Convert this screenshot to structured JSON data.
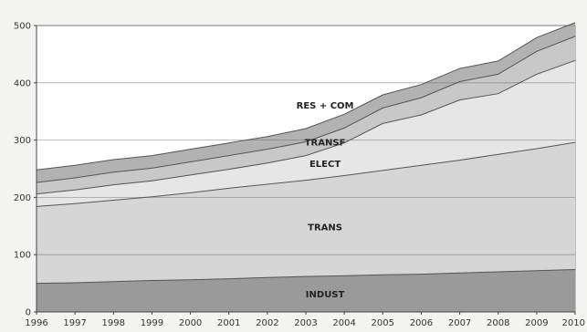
{
  "chart_data": {
    "type": "area",
    "stacked": true,
    "title": "",
    "xlabel": "",
    "ylabel": "",
    "x": [
      "1996",
      "1997",
      "1998",
      "1999",
      "2000",
      "2001",
      "2002",
      "2003",
      "2004",
      "2005",
      "2006",
      "2007",
      "2008",
      "2009",
      "2010"
    ],
    "ylim": [
      0,
      500
    ],
    "yticks": [
      0,
      100,
      200,
      300,
      400,
      500
    ],
    "grid": true,
    "legend": "inline labels",
    "series": [
      {
        "name": "INDUST",
        "color": "#9a9a9a",
        "values": [
          50,
          51,
          53,
          55,
          56,
          58,
          60,
          62,
          63,
          65,
          66,
          68,
          70,
          72,
          74
        ]
      },
      {
        "name": "TRANS",
        "color": "#d6d6d6",
        "values": [
          134,
          138,
          142,
          146,
          152,
          158,
          163,
          168,
          175,
          182,
          190,
          197,
          205,
          213,
          222
        ]
      },
      {
        "name": "ELECT",
        "color": "#e6e6e6",
        "values": [
          22,
          24,
          27,
          28,
          31,
          33,
          37,
          43,
          57,
          82,
          88,
          105,
          106,
          130,
          143
        ]
      },
      {
        "name": "TRANSF",
        "color": "#c8c8c8",
        "values": [
          20,
          21,
          22,
          22,
          23,
          24,
          24,
          24,
          26,
          27,
          30,
          32,
          34,
          40,
          42
        ]
      },
      {
        "name": "RES + COM",
        "color": "#b2b2b2",
        "values": [
          22,
          22,
          22,
          22,
          22,
          22,
          22,
          23,
          24,
          23,
          23,
          23,
          23,
          24,
          24
        ]
      }
    ]
  }
}
